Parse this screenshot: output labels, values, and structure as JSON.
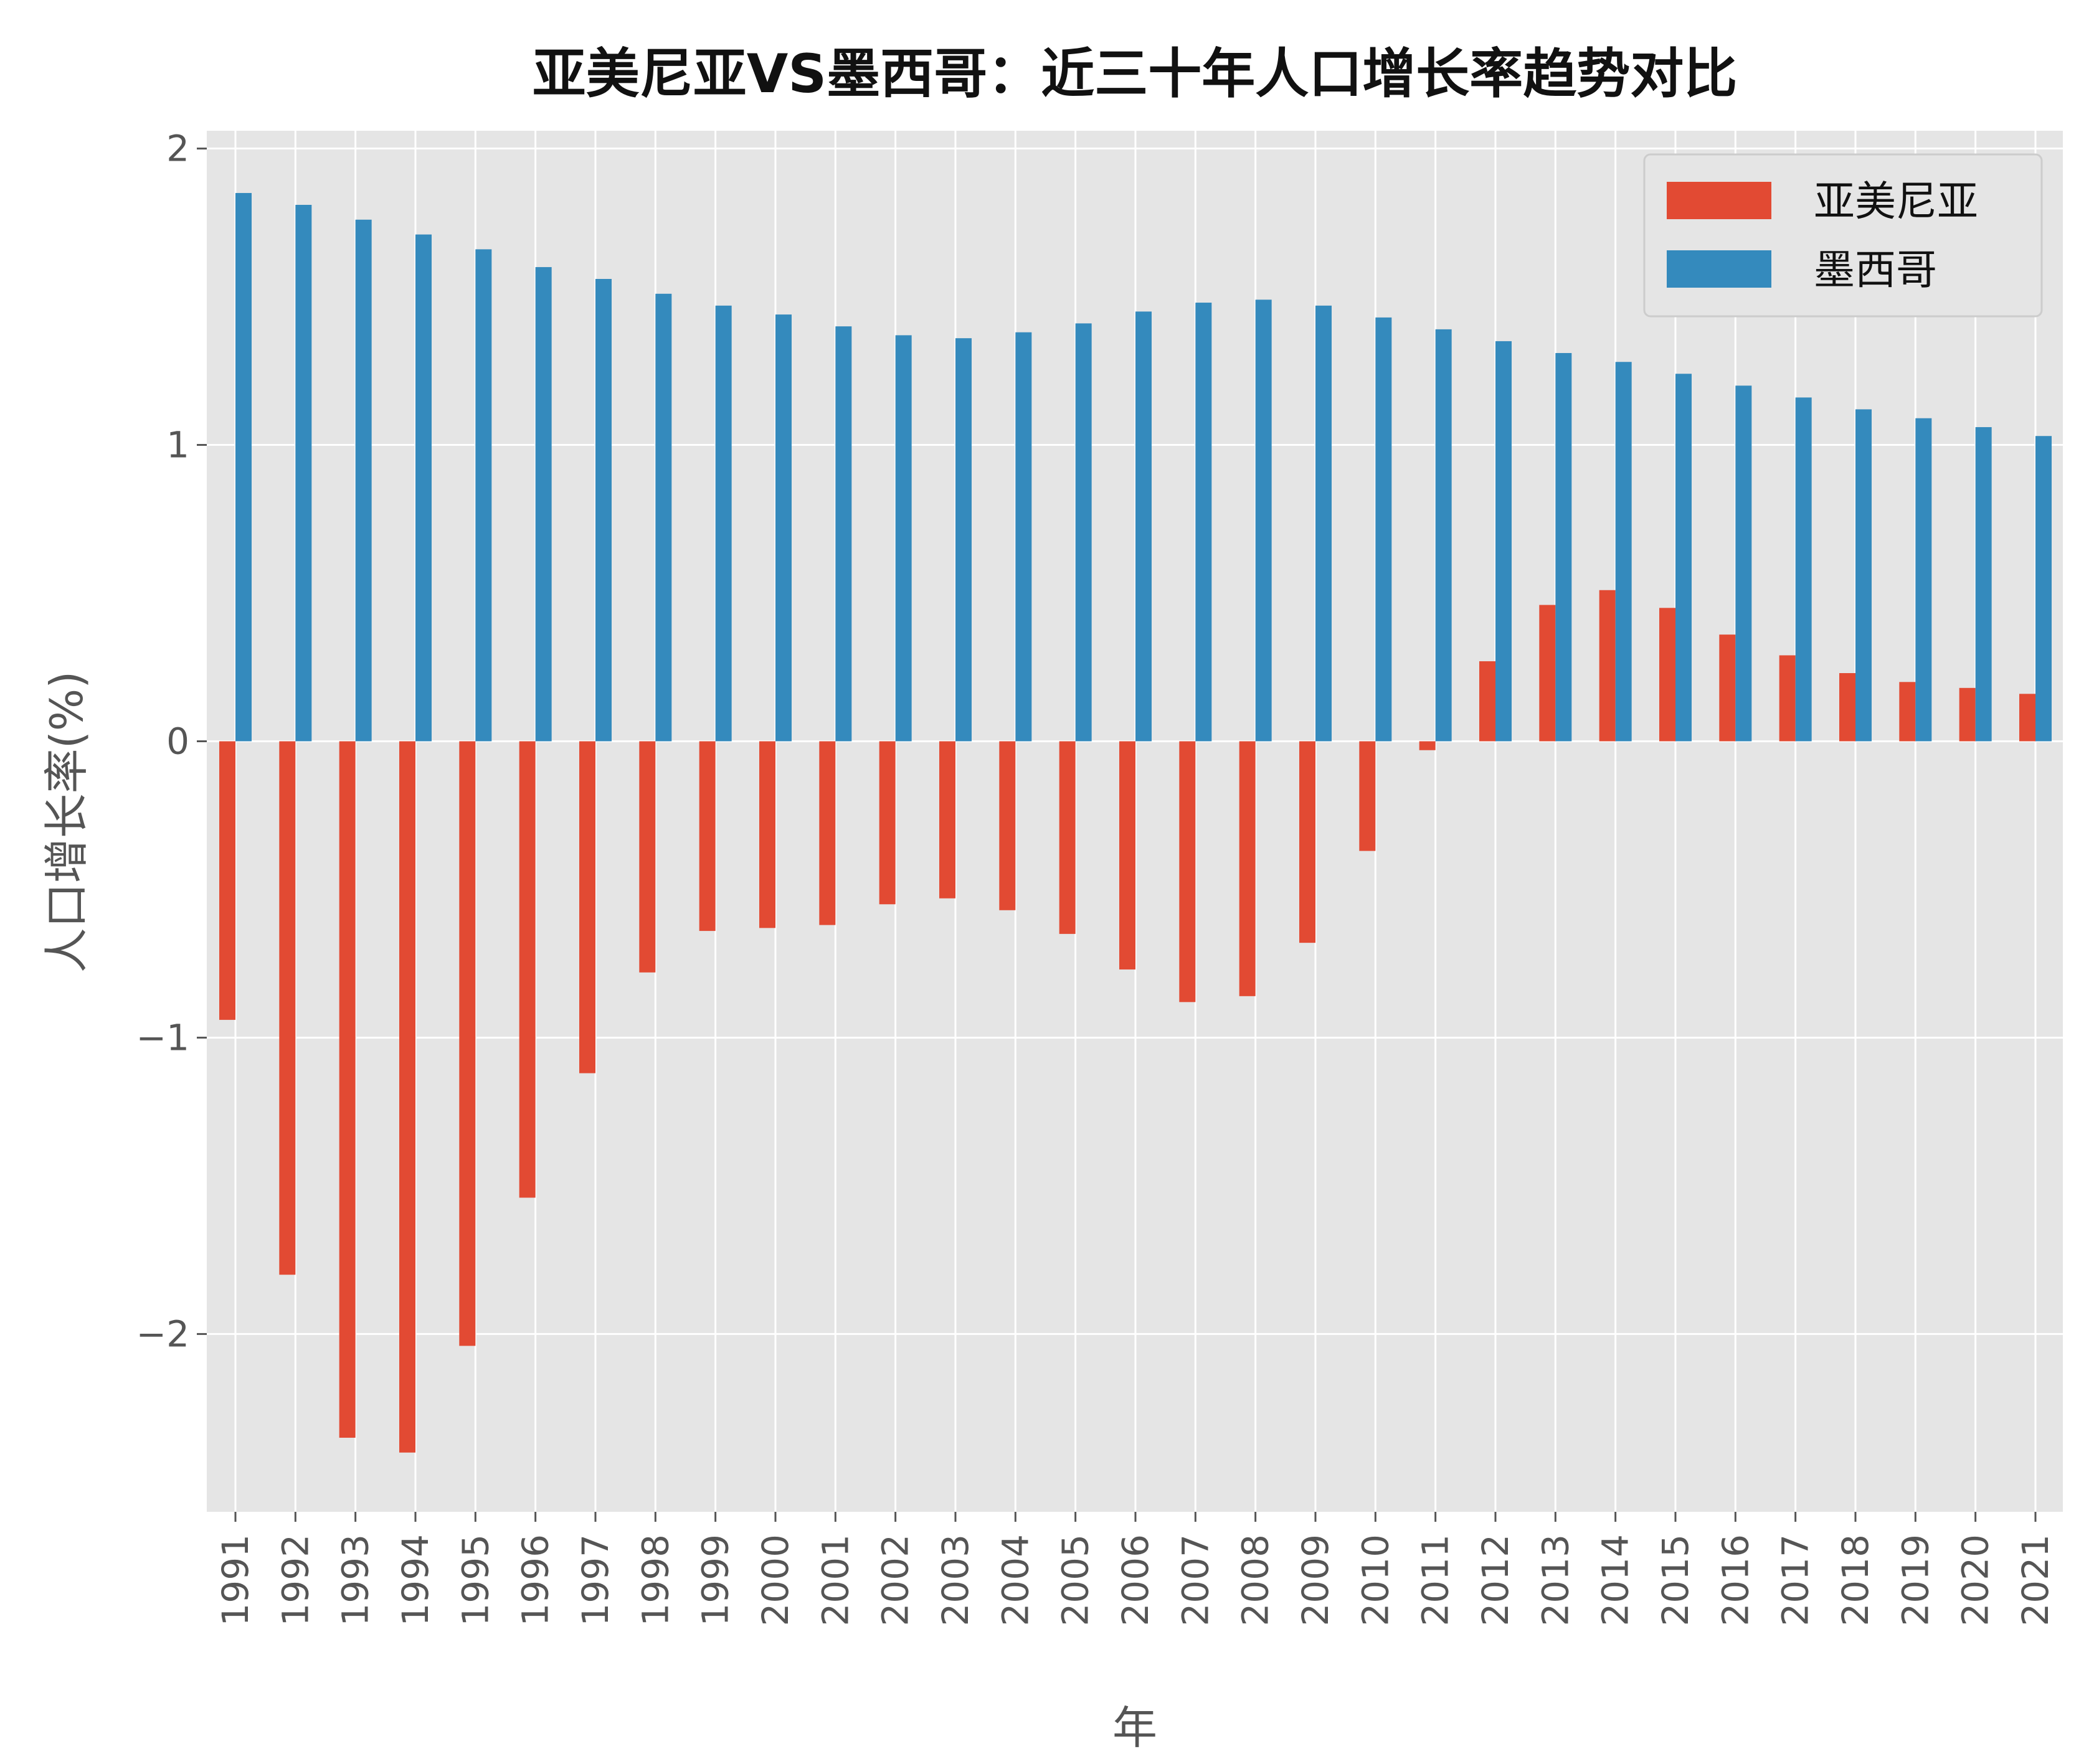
{
  "chart_data": {
    "type": "bar",
    "title": "亚美尼亚VS墨西哥：近三十年人口增长率趋势对比",
    "xlabel": "年",
    "ylabel": "人口增长率(%)",
    "ylim": [
      -2.6,
      2.06
    ],
    "yticks": [
      -2,
      -1,
      0,
      1,
      2
    ],
    "ytick_labels": [
      "−2",
      "−1",
      "0",
      "1",
      "2"
    ],
    "grid": true,
    "legend_position": "top-right",
    "categories": [
      "1991",
      "1992",
      "1993",
      "1994",
      "1995",
      "1996",
      "1997",
      "1998",
      "1999",
      "2000",
      "2001",
      "2002",
      "2003",
      "2004",
      "2005",
      "2006",
      "2007",
      "2008",
      "2009",
      "2010",
      "2011",
      "2012",
      "2013",
      "2014",
      "2015",
      "2016",
      "2017",
      "2018",
      "2019",
      "2020",
      "2021"
    ],
    "series": [
      {
        "name": "亚美尼亚",
        "color": "#E24A33",
        "values": [
          -0.94,
          -1.8,
          -2.35,
          -2.4,
          -2.04,
          -1.54,
          -1.12,
          -0.78,
          -0.64,
          -0.63,
          -0.62,
          -0.55,
          -0.53,
          -0.57,
          -0.65,
          -0.77,
          -0.88,
          -0.86,
          -0.68,
          -0.37,
          -0.03,
          0.27,
          0.46,
          0.51,
          0.45,
          0.36,
          0.29,
          0.23,
          0.2,
          0.18,
          0.16
        ]
      },
      {
        "name": "墨西哥",
        "color": "#348ABD",
        "values": [
          1.85,
          1.81,
          1.76,
          1.71,
          1.66,
          1.6,
          1.56,
          1.51,
          1.47,
          1.44,
          1.4,
          1.37,
          1.36,
          1.38,
          1.41,
          1.45,
          1.48,
          1.49,
          1.47,
          1.43,
          1.39,
          1.35,
          1.31,
          1.28,
          1.24,
          1.2,
          1.16,
          1.12,
          1.09,
          1.06,
          1.03
        ]
      }
    ]
  },
  "colors": {
    "plot_background": "#E5E5E5",
    "grid": "#FFFFFF",
    "tick_label": "#555555",
    "title": "#111111"
  }
}
